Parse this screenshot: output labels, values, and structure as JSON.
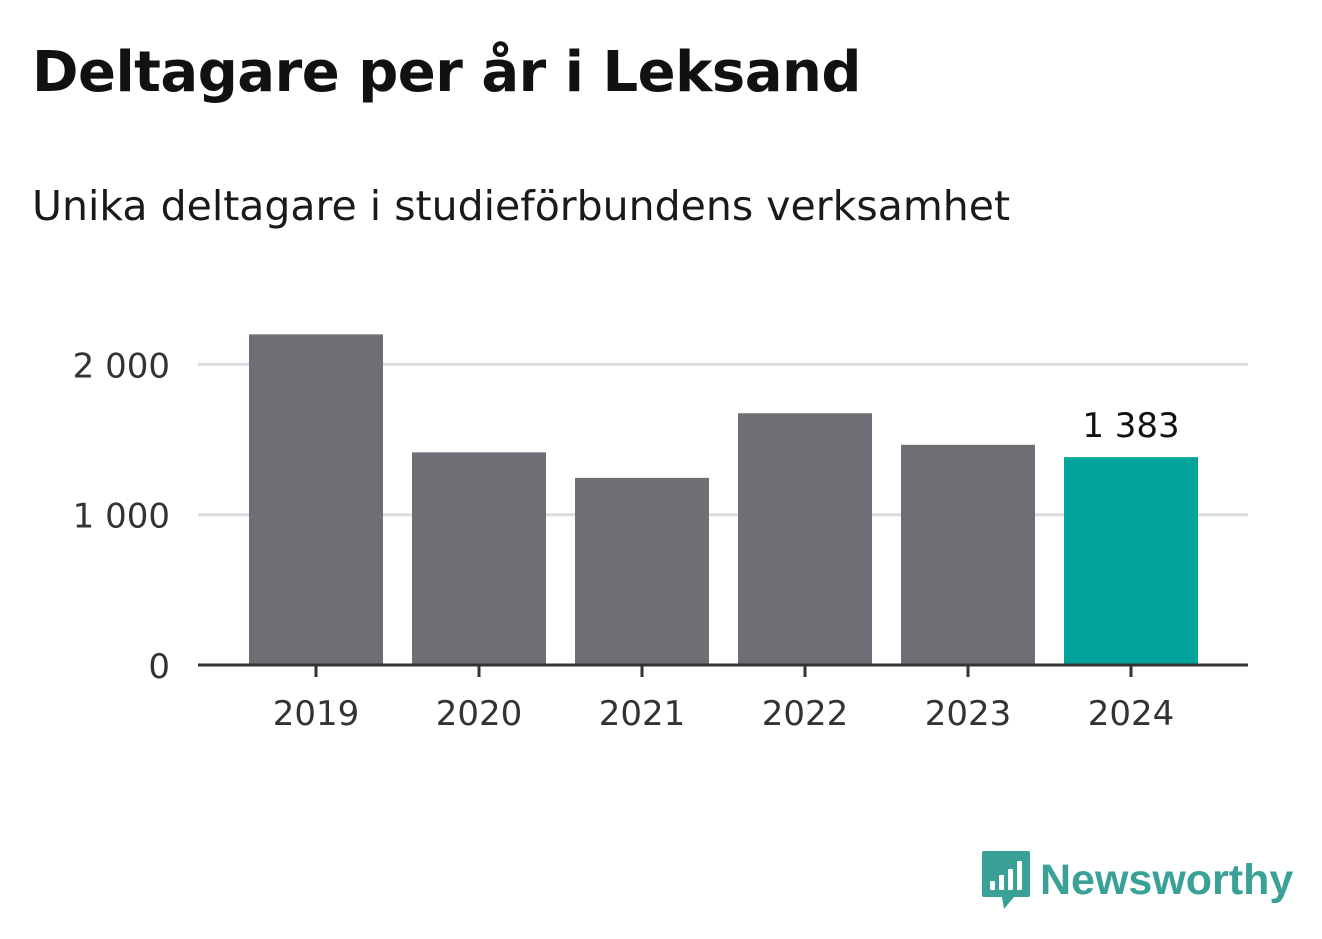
{
  "header": {
    "title": "Deltagare per år i Leksand",
    "subtitle": "Unika deltagare i studieförbundens verksamhet"
  },
  "brand": {
    "name": "Newsworthy",
    "icon": "newsworthy-logo-icon",
    "color": "#3aa197"
  },
  "colors": {
    "bar": "#6f6e74",
    "highlight": "#00a49a",
    "grid": "#dddddd",
    "axis": "#333333",
    "tick_text": "#333333"
  },
  "chart_data": {
    "type": "bar",
    "categories": [
      "2019",
      "2020",
      "2021",
      "2022",
      "2023",
      "2024"
    ],
    "values": [
      2200,
      1415,
      1245,
      1675,
      1465,
      1383
    ],
    "highlight_index": 5,
    "data_labels": [
      {
        "index": 5,
        "text": "1 383"
      }
    ],
    "yticks": [
      0,
      1000,
      2000
    ],
    "ytick_labels": [
      "0",
      "1 000",
      "2 000"
    ],
    "ylim": [
      0,
      2200
    ],
    "grid": true,
    "xlabel": "",
    "ylabel": ""
  }
}
